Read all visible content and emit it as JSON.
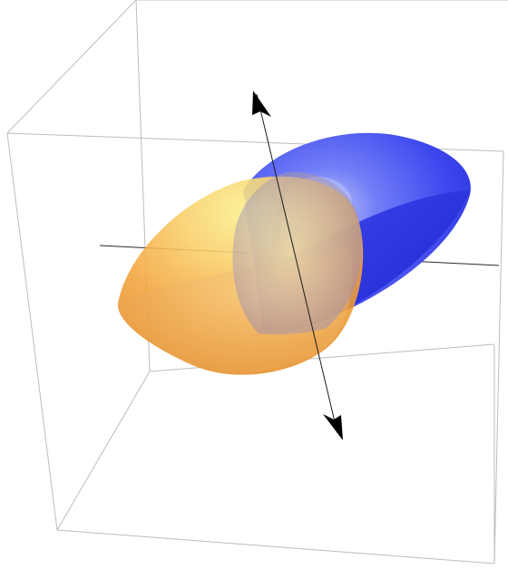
{
  "scene": {
    "kind": "3d-plot",
    "colors": {
      "box_edges": "#bdbdbd",
      "orange_solid": "#f2a43a",
      "orange_highlight": "#fbe48a",
      "orange_shadow": "#d4861e",
      "blue_solid": "#2f35f0",
      "blue_highlight": "#8f9af8",
      "blue_shadow": "#1d22c9",
      "arrows": "#000000"
    },
    "objects": [
      {
        "name": "orange-hemisphere",
        "color": "orange",
        "opacity": 0.75
      },
      {
        "name": "blue-hemisphere",
        "color": "blue",
        "opacity": 0.95
      },
      {
        "name": "rotation-axis",
        "arrowheads": 2
      },
      {
        "name": "horizontal-axis-line"
      }
    ],
    "bounding_box": true,
    "axes_labels": false
  }
}
